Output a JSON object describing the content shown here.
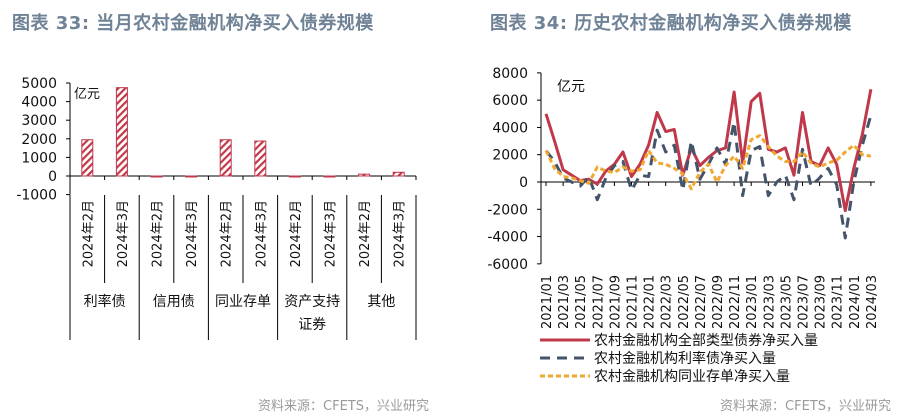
{
  "left": {
    "title": "图表 33: 当月农村金融机构净买入债券规模",
    "source": "资料来源：CFETS，兴业研究",
    "chart_data": {
      "type": "bar",
      "unit_label": "亿元",
      "ylim": [
        -1000,
        5000
      ],
      "yticks": [
        5000,
        4000,
        3000,
        2000,
        1000,
        0,
        -1000
      ],
      "groups": [
        {
          "label": "利率债",
          "label2": ""
        },
        {
          "label": "信用债",
          "label2": ""
        },
        {
          "label": "同业存单",
          "label2": ""
        },
        {
          "label": "资产支持",
          "label2": "证券"
        },
        {
          "label": "其他",
          "label2": ""
        }
      ],
      "categories": [
        "2024年2月",
        "2024年3月",
        "2024年2月",
        "2024年3月",
        "2024年2月",
        "2024年3月",
        "2024年2月",
        "2024年3月",
        "2024年2月",
        "2024年3月"
      ],
      "values": [
        1950,
        4750,
        -50,
        -50,
        1950,
        1880,
        -40,
        0,
        100,
        200
      ],
      "bar_color": "#c0394b",
      "fill_pattern": "diagonal-hatch"
    }
  },
  "right": {
    "title": "图表 34: 历史农村金融机构净买入债券规模",
    "source": "资料来源：CFETS，兴业研究",
    "chart_data": {
      "type": "line",
      "unit_label": "亿元",
      "ylim": [
        -6000,
        8000
      ],
      "yticks": [
        8000,
        6000,
        4000,
        2000,
        0,
        -2000,
        -4000,
        -6000
      ],
      "x": [
        "2021/01",
        "2021/02",
        "2021/03",
        "2021/04",
        "2021/05",
        "2021/06",
        "2021/07",
        "2021/08",
        "2021/09",
        "2021/10",
        "2021/11",
        "2021/12",
        "2022/01",
        "2022/02",
        "2022/03",
        "2022/04",
        "2022/05",
        "2022/06",
        "2022/07",
        "2022/08",
        "2022/09",
        "2022/10",
        "2022/11",
        "2022/12",
        "2023/01",
        "2023/02",
        "2023/03",
        "2023/04",
        "2023/05",
        "2023/06",
        "2023/07",
        "2023/08",
        "2023/09",
        "2023/10",
        "2023/11",
        "2023/12",
        "2024/01",
        "2024/02",
        "2024/03"
      ],
      "xtick_labels": [
        "2021/01",
        "2021/03",
        "2021/05",
        "2021/07",
        "2021/09",
        "2021/11",
        "2022/01",
        "2022/03",
        "2022/05",
        "2022/07",
        "2022/09",
        "2022/11",
        "2023/01",
        "2023/03",
        "2023/05",
        "2023/07",
        "2023/09",
        "2023/11",
        "2024/01",
        "2024/03"
      ],
      "legend_position": "bottom",
      "series": [
        {
          "name": "农村金融机构全部类型债券净买入量",
          "color": "#c0394b",
          "dash": "solid",
          "values": [
            5000,
            3000,
            900,
            500,
            100,
            200,
            -150,
            800,
            1300,
            2200,
            400,
            1300,
            2700,
            5100,
            3700,
            3850,
            500,
            2500,
            1200,
            1800,
            2300,
            2500,
            6600,
            1400,
            5900,
            6500,
            2400,
            2200,
            2500,
            500,
            5100,
            1500,
            1200,
            2500,
            1300,
            -2100,
            1000,
            3500,
            6800
          ]
        },
        {
          "name": "农村金融机构利率债净买入量",
          "color": "#44546a",
          "dash": "long-dash",
          "values": [
            2300,
            1500,
            300,
            0,
            -300,
            400,
            -1300,
            300,
            1200,
            1500,
            -600,
            500,
            400,
            3800,
            2200,
            2700,
            -600,
            3000,
            200,
            1300,
            2500,
            1300,
            4400,
            -1000,
            2300,
            2600,
            -1000,
            0,
            500,
            -1300,
            2400,
            -300,
            300,
            1000,
            -200,
            -4100,
            0,
            2700,
            4900
          ]
        },
        {
          "name": "农村金融机构同业存单净买入量",
          "color": "#f0a830",
          "dash": "short-dash",
          "values": [
            2300,
            1000,
            400,
            300,
            100,
            -100,
            1100,
            800,
            700,
            1100,
            800,
            900,
            2300,
            1400,
            1300,
            1000,
            600,
            -500,
            700,
            1300,
            0,
            1200,
            1900,
            1000,
            3100,
            3400,
            2600,
            1900,
            1500,
            1500,
            2200,
            1400,
            1100,
            1400,
            1600,
            2200,
            2700,
            2000,
            1900
          ]
        }
      ]
    }
  }
}
